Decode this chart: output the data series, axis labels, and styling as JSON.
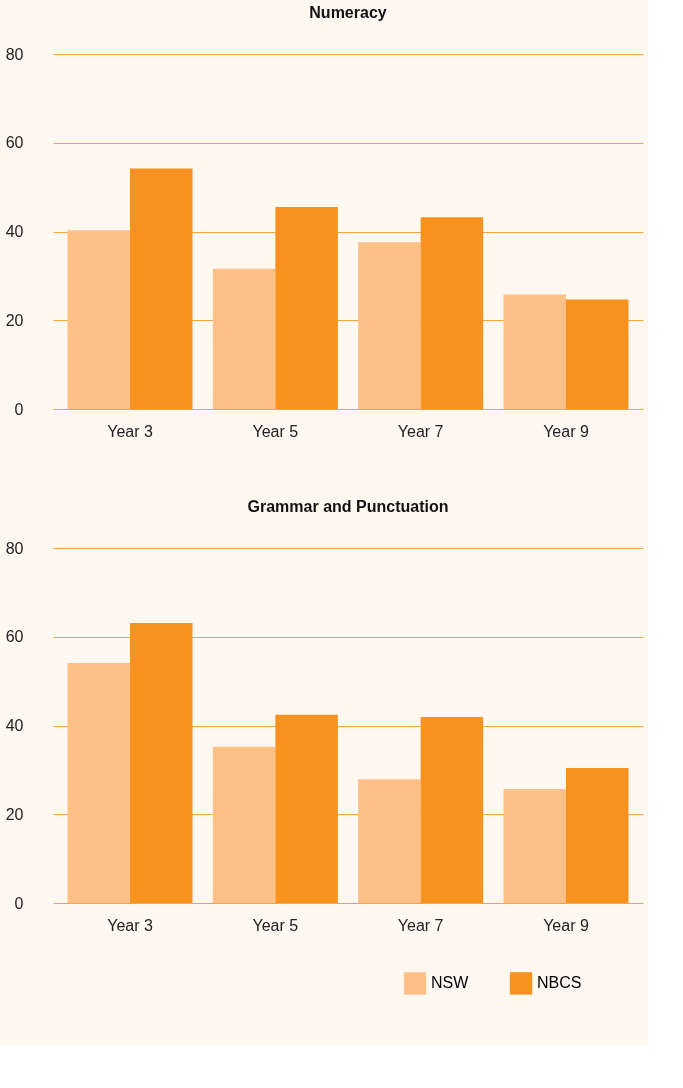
{
  "chart_data": [
    {
      "type": "bar",
      "title": "Numeracy",
      "categories": [
        "Year 3",
        "Year 5",
        "Year 7",
        "Year 9"
      ],
      "series": [
        {
          "color": "#fdc086",
          "values": [
            40.3,
            31.6,
            37.6,
            25.8
          ]
        },
        {
          "color": "#f7921e",
          "values": [
            54.2,
            45.5,
            43.2,
            24.7
          ]
        }
      ],
      "ylim": [
        0,
        80
      ],
      "yticks": [
        0,
        20,
        40,
        60,
        80
      ],
      "grid": "y"
    },
    {
      "type": "bar",
      "title": "Grammar and Punctuation",
      "categories": [
        "Year 3",
        "Year 5",
        "Year 7",
        "Year 9"
      ],
      "series": [
        {
          "name": "NSW",
          "color": "#fdc086",
          "values": [
            54.1,
            35.2,
            27.9,
            25.7
          ]
        },
        {
          "name": "NBCS",
          "color": "#f7921e",
          "values": [
            63.1,
            42.4,
            41.9,
            30.4
          ]
        }
      ],
      "ylim": [
        0,
        80
      ],
      "yticks": [
        0,
        20,
        40,
        60,
        80
      ],
      "grid": "y",
      "legend": "bottom right"
    }
  ]
}
